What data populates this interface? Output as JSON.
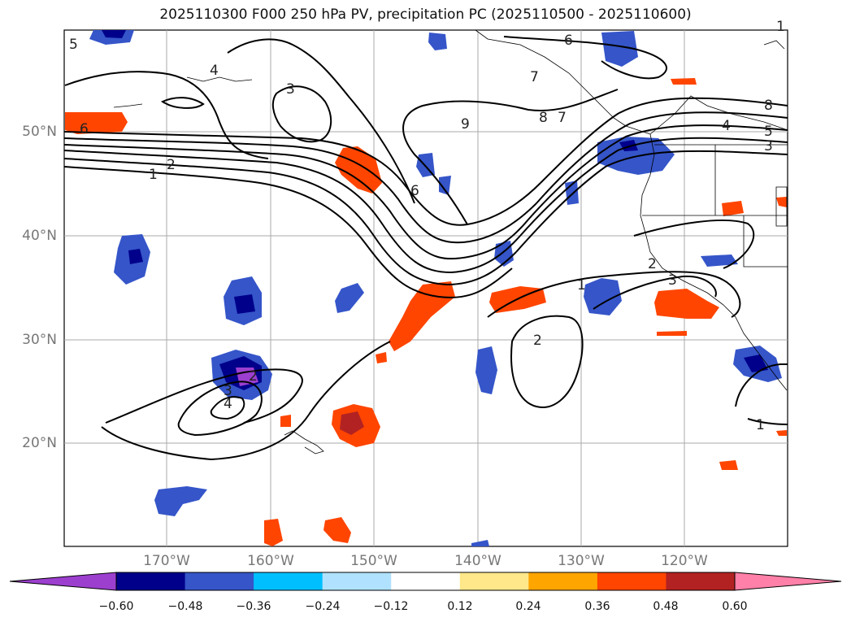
{
  "title": "2025110300 F000 250 hPa PV, precipitation PC (2025110500 - 2025110600)",
  "lat_labels": [
    "50°N",
    "40°N",
    "30°N",
    "20°N"
  ],
  "lon_labels": [
    "170°W",
    "160°W",
    "150°W",
    "140°W",
    "130°W",
    "120°W"
  ],
  "contour_labels": [
    "5",
    "4",
    "3",
    "6",
    "2",
    "1",
    "9",
    "8",
    "7",
    "6",
    "5",
    "4",
    "3",
    "8",
    "6",
    "7",
    "1",
    "2",
    "3",
    "2",
    "3",
    "4",
    "2",
    "1",
    "1"
  ],
  "colorbar": {
    "ticks": [
      "−0.60",
      "−0.48",
      "−0.36",
      "−0.24",
      "−0.12",
      "0.12",
      "0.24",
      "0.36",
      "0.48",
      "0.60"
    ],
    "colors": [
      "#9c3fcf",
      "#00008b",
      "#3555c9",
      "#00bfff",
      "#b0e2ff",
      "#ffffff",
      "#ffe88a",
      "#ffa500",
      "#ff4500",
      "#b22222",
      "#ff80a8"
    ]
  }
}
